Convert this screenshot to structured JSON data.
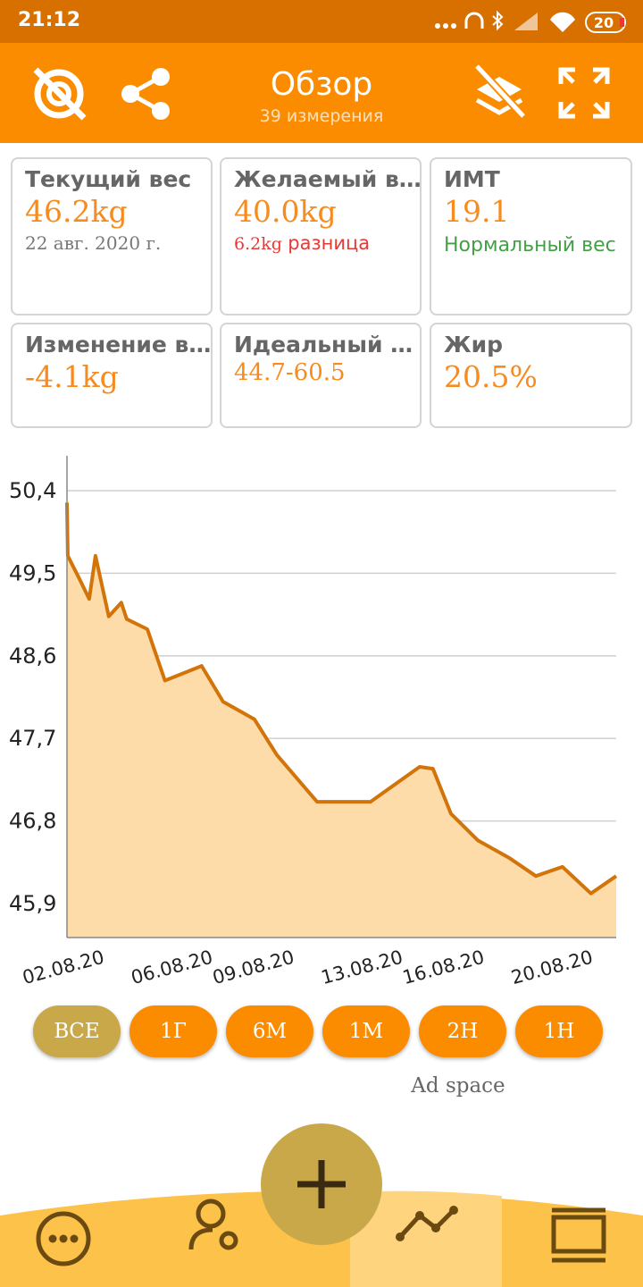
{
  "status_bar": {
    "time": "21:12",
    "battery": "20"
  },
  "toolbar": {
    "title": "Обзор",
    "subtitle": "39 измерения"
  },
  "cards": [
    {
      "label": "Текущий вес",
      "value": "46.2kg",
      "note": "22 авг. 2020 г."
    },
    {
      "label": "Желаемый в…",
      "value": "40.0kg",
      "difference": "6.2kg",
      "note": "разница"
    },
    {
      "label": "ИМТ",
      "value": "19.1",
      "note": "Нормальный вес"
    },
    {
      "label": "Изменение в…",
      "value": "-4.1kg"
    },
    {
      "label": "Идеальный …",
      "value": "44.7-60.5"
    },
    {
      "label": "Жир",
      "value": "20.5%"
    }
  ],
  "chart_data": {
    "type": "line",
    "color": "#d2740a",
    "fill": "#fddcaa",
    "x": [
      0.59,
      0.62,
      1.08,
      1.41,
      1.64,
      2.13,
      2.59,
      2.79,
      3.55,
      4.2,
      5.55,
      6.34,
      7.49,
      8.32,
      9.8,
      11.77,
      13.58,
      14.07,
      14.73,
      15.72,
      16.87,
      17.86,
      18.84,
      19.89,
      20.82
    ],
    "values": [
      50.27,
      49.69,
      49.42,
      49.22,
      49.69,
      49.03,
      49.18,
      49.0,
      48.89,
      48.33,
      48.49,
      48.1,
      47.91,
      47.52,
      47.01,
      47.01,
      47.39,
      47.37,
      46.88,
      46.59,
      46.4,
      46.2,
      46.3,
      46.01,
      46.2
    ],
    "xlim": [
      0.59,
      20.82
    ],
    "xticks": [
      {
        "value": 2,
        "label": "02.08.20"
      },
      {
        "value": 6,
        "label": "06.08.20"
      },
      {
        "value": 9,
        "label": "09.08.20"
      },
      {
        "value": 13,
        "label": "13.08.20"
      },
      {
        "value": 16,
        "label": "16.08.20"
      },
      {
        "value": 20,
        "label": "20.08.20"
      }
    ],
    "ylim": [
      45.53,
      50.78
    ],
    "yticks": [
      {
        "value": 50.4,
        "label": "50,4"
      },
      {
        "value": 49.5,
        "label": "49,5"
      },
      {
        "value": 48.6,
        "label": "48,6"
      },
      {
        "value": 47.7,
        "label": "47,7"
      },
      {
        "value": 46.8,
        "label": "46,8"
      },
      {
        "value": 45.9,
        "label": "45,9"
      }
    ],
    "grid": true
  },
  "range_buttons": [
    "ВСЕ",
    "1Г",
    "6М",
    "1М",
    "2Н",
    "1Н"
  ],
  "ad": "Ad space"
}
